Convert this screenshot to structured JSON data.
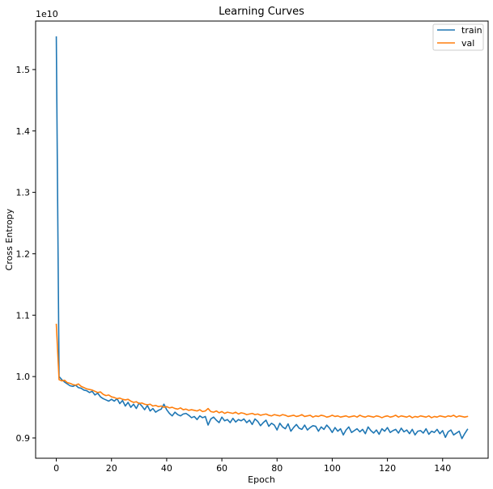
{
  "chart_data": {
    "type": "line",
    "title": "Learning Curves",
    "xlabel": "Epoch",
    "ylabel": "Cross Entropy",
    "y_offset_label": "1e10",
    "xlim": [
      -7.5,
      156.5
    ],
    "ylim": [
      8.67,
      15.79
    ],
    "x_ticks": [
      0,
      20,
      40,
      60,
      80,
      100,
      120,
      140
    ],
    "y_ticks": [
      9.0,
      10.0,
      11.0,
      12.0,
      13.0,
      14.0,
      15.0
    ],
    "y_tick_labels": [
      "0.9",
      "1.0",
      "1.1",
      "1.2",
      "1.3",
      "1.4",
      "1.5"
    ],
    "legend_position": "top-right",
    "grid": false,
    "series": [
      {
        "name": "train",
        "color": "#1f77b4",
        "values": [
          15.53,
          10.0,
          9.95,
          9.91,
          9.88,
          9.85,
          9.84,
          9.86,
          9.82,
          9.81,
          9.78,
          9.77,
          9.74,
          9.76,
          9.7,
          9.73,
          9.67,
          9.64,
          9.62,
          9.6,
          9.63,
          9.6,
          9.64,
          9.56,
          9.61,
          9.52,
          9.58,
          9.5,
          9.55,
          9.48,
          9.57,
          9.52,
          9.46,
          9.53,
          9.44,
          9.48,
          9.42,
          9.45,
          9.47,
          9.55,
          9.46,
          9.4,
          9.36,
          9.42,
          9.38,
          9.36,
          9.39,
          9.4,
          9.37,
          9.33,
          9.35,
          9.3,
          9.36,
          9.33,
          9.35,
          9.21,
          9.31,
          9.34,
          9.29,
          9.25,
          9.34,
          9.28,
          9.3,
          9.25,
          9.32,
          9.26,
          9.3,
          9.28,
          9.31,
          9.25,
          9.29,
          9.22,
          9.31,
          9.27,
          9.2,
          9.25,
          9.29,
          9.19,
          9.24,
          9.21,
          9.13,
          9.24,
          9.18,
          9.15,
          9.23,
          9.11,
          9.17,
          9.22,
          9.16,
          9.14,
          9.21,
          9.13,
          9.17,
          9.2,
          9.19,
          9.11,
          9.18,
          9.14,
          9.21,
          9.16,
          9.09,
          9.17,
          9.11,
          9.15,
          9.05,
          9.13,
          9.18,
          9.09,
          9.12,
          9.15,
          9.1,
          9.14,
          9.07,
          9.18,
          9.12,
          9.08,
          9.13,
          9.06,
          9.15,
          9.11,
          9.17,
          9.09,
          9.12,
          9.14,
          9.08,
          9.16,
          9.1,
          9.13,
          9.07,
          9.14,
          9.05,
          9.11,
          9.12,
          9.08,
          9.15,
          9.06,
          9.11,
          9.09,
          9.14,
          9.07,
          9.12,
          9.01,
          9.1,
          9.13,
          9.05,
          9.08,
          9.11,
          8.99,
          9.07,
          9.14
        ]
      },
      {
        "name": "val",
        "color": "#ff7f0e",
        "values": [
          10.85,
          9.95,
          9.93,
          9.94,
          9.9,
          9.89,
          9.87,
          9.86,
          9.88,
          9.84,
          9.82,
          9.8,
          9.79,
          9.78,
          9.76,
          9.74,
          9.75,
          9.71,
          9.69,
          9.7,
          9.67,
          9.66,
          9.64,
          9.65,
          9.63,
          9.62,
          9.63,
          9.6,
          9.58,
          9.59,
          9.56,
          9.57,
          9.55,
          9.54,
          9.55,
          9.52,
          9.53,
          9.51,
          9.52,
          9.5,
          9.51,
          9.49,
          9.5,
          9.48,
          9.47,
          9.49,
          9.46,
          9.47,
          9.45,
          9.46,
          9.45,
          9.44,
          9.46,
          9.43,
          9.44,
          9.48,
          9.43,
          9.42,
          9.44,
          9.41,
          9.43,
          9.4,
          9.42,
          9.41,
          9.4,
          9.42,
          9.39,
          9.41,
          9.4,
          9.38,
          9.39,
          9.4,
          9.38,
          9.39,
          9.37,
          9.38,
          9.39,
          9.37,
          9.36,
          9.38,
          9.37,
          9.36,
          9.38,
          9.37,
          9.35,
          9.36,
          9.37,
          9.35,
          9.36,
          9.38,
          9.35,
          9.36,
          9.37,
          9.34,
          9.36,
          9.35,
          9.37,
          9.36,
          9.34,
          9.35,
          9.37,
          9.35,
          9.36,
          9.34,
          9.35,
          9.36,
          9.34,
          9.35,
          9.36,
          9.34,
          9.37,
          9.35,
          9.34,
          9.36,
          9.35,
          9.34,
          9.36,
          9.35,
          9.33,
          9.35,
          9.36,
          9.34,
          9.35,
          9.37,
          9.34,
          9.36,
          9.35,
          9.34,
          9.36,
          9.33,
          9.35,
          9.34,
          9.36,
          9.35,
          9.34,
          9.36,
          9.33,
          9.35,
          9.34,
          9.36,
          9.35,
          9.34,
          9.36,
          9.35,
          9.37,
          9.34,
          9.36,
          9.35,
          9.34,
          9.35
        ]
      }
    ]
  }
}
